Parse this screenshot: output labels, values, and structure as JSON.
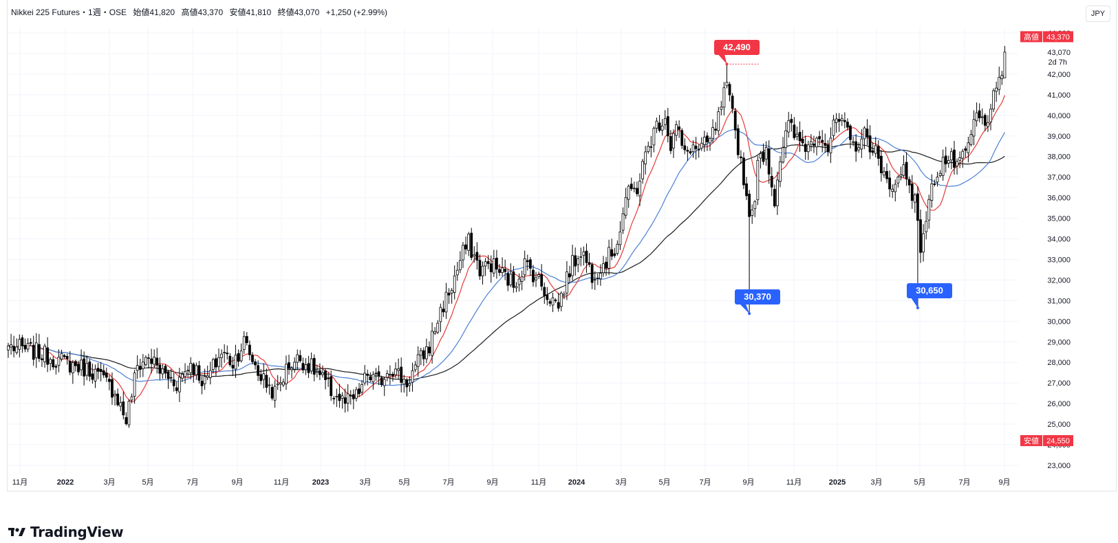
{
  "header": {
    "symbol": "Nikkei 225 Futures・1週・OSE",
    "open": "始値41,820",
    "high": "高値43,370",
    "low": "安値41,810",
    "close": "終値43,070",
    "change": "+1,250 (+2.99%)"
  },
  "currency": "JPY",
  "logo": "TradingView",
  "price_tags": {
    "high_label": "高値",
    "high_value": "43,370",
    "last_value": "43,070",
    "countdown": "2d 7h",
    "low_label": "安値",
    "low_value": "24,550"
  },
  "colors": {
    "up_body": "#ffffff",
    "down_body": "#000000",
    "wick": "#000000",
    "ma_short": "#e53935",
    "ma_mid": "#4a7fd4",
    "ma_long": "#1a1a1a",
    "callout_red": "#f23645",
    "callout_blue": "#2962ff"
  },
  "chart_data": {
    "type": "candlestick",
    "y_axis": {
      "min": 22600,
      "max": 44400,
      "ticks": [
        "23,000",
        "24,000",
        "25,000",
        "26,000",
        "27,000",
        "28,000",
        "29,000",
        "30,000",
        "31,000",
        "32,000",
        "33,000",
        "34,000",
        "35,000",
        "36,000",
        "37,000",
        "38,000",
        "39,000",
        "40,000",
        "41,000",
        "42,000",
        "43,070",
        "44,000"
      ],
      "position": "right"
    },
    "x_axis": {
      "labels": [
        "11月",
        "2022",
        "3月",
        "5月",
        "7月",
        "9月",
        "11月",
        "2023",
        "3月",
        "5月",
        "7月",
        "9月",
        "11月",
        "2024",
        "3月",
        "5月",
        "7月",
        "9月",
        "11月",
        "2025",
        "3月",
        "5月",
        "7月",
        "9月"
      ]
    },
    "grid": true,
    "annotations": [
      {
        "text": "42,490",
        "color": "red",
        "kind": "high",
        "value": 42490
      },
      {
        "text": "30,370",
        "color": "blue",
        "kind": "low",
        "value": 30370
      },
      {
        "text": "30,650",
        "color": "blue",
        "kind": "low",
        "value": 30650
      }
    ],
    "anchors": [
      [
        0,
        28800
      ],
      [
        10,
        28500
      ],
      [
        20,
        28000
      ],
      [
        30,
        27600
      ],
      [
        38,
        26600
      ],
      [
        42,
        25200
      ],
      [
        46,
        27800
      ],
      [
        50,
        28300
      ],
      [
        54,
        27600
      ],
      [
        60,
        27000
      ],
      [
        65,
        28000
      ],
      [
        70,
        27000
      ],
      [
        76,
        28500
      ],
      [
        80,
        28000
      ],
      [
        84,
        29000
      ],
      [
        90,
        27300
      ],
      [
        95,
        26500
      ],
      [
        100,
        27900
      ],
      [
        104,
        28200
      ],
      [
        110,
        27500
      ],
      [
        115,
        26600
      ],
      [
        120,
        26000
      ],
      [
        124,
        26300
      ],
      [
        128,
        27400
      ],
      [
        132,
        27000
      ],
      [
        136,
        27800
      ],
      [
        142,
        27000
      ],
      [
        146,
        28000
      ],
      [
        150,
        28800
      ],
      [
        154,
        30500
      ],
      [
        158,
        31700
      ],
      [
        162,
        33300
      ],
      [
        164,
        33800
      ],
      [
        168,
        32500
      ],
      [
        172,
        32800
      ],
      [
        176,
        32300
      ],
      [
        180,
        31800
      ],
      [
        184,
        32800
      ],
      [
        188,
        32200
      ],
      [
        192,
        31300
      ],
      [
        196,
        30800
      ],
      [
        200,
        32500
      ],
      [
        204,
        33500
      ],
      [
        208,
        32300
      ],
      [
        212,
        32800
      ],
      [
        216,
        33500
      ],
      [
        218,
        34500
      ],
      [
        220,
        36000
      ],
      [
        224,
        36500
      ],
      [
        228,
        38500
      ],
      [
        231,
        39500
      ],
      [
        234,
        40000
      ],
      [
        236,
        38500
      ],
      [
        238,
        39500
      ],
      [
        241,
        38000
      ],
      [
        243,
        38500
      ],
      [
        246,
        38300
      ],
      [
        250,
        38700
      ],
      [
        253,
        39800
      ],
      [
        255,
        41000
      ],
      [
        256,
        41200
      ],
      [
        258,
        40000
      ],
      [
        262,
        37000
      ],
      [
        263,
        36000
      ],
      [
        265,
        35000
      ],
      [
        267,
        37500
      ],
      [
        270,
        38500
      ],
      [
        272,
        36500
      ],
      [
        273,
        36000
      ],
      [
        275,
        38000
      ],
      [
        278,
        39500
      ],
      [
        281,
        38800
      ],
      [
        285,
        38500
      ],
      [
        289,
        39300
      ],
      [
        292,
        38400
      ],
      [
        295,
        39800
      ],
      [
        298,
        39300
      ],
      [
        301,
        38500
      ],
      [
        305,
        39000
      ],
      [
        309,
        38300
      ],
      [
        311,
        37000
      ],
      [
        313,
        37000
      ],
      [
        316,
        36500
      ],
      [
        319,
        37500
      ],
      [
        321,
        36800
      ],
      [
        323,
        35800
      ],
      [
        324,
        34500
      ],
      [
        325,
        33700
      ],
      [
        327,
        35000
      ],
      [
        330,
        37000
      ],
      [
        333,
        37800
      ],
      [
        336,
        37800
      ],
      [
        339,
        37500
      ],
      [
        342,
        38500
      ],
      [
        345,
        40000
      ],
      [
        348,
        39500
      ],
      [
        350,
        40500
      ],
      [
        352,
        41000
      ],
      [
        354,
        41800
      ],
      [
        355,
        43070
      ]
    ],
    "special_bars": [
      {
        "index": 256,
        "high": 42490
      },
      {
        "index": 264,
        "low": 30370
      },
      {
        "index": 324,
        "low": 30650
      }
    ],
    "moving_averages": [
      {
        "period": 9,
        "color": "#e53935"
      },
      {
        "period": 26,
        "color": "#4a7fd4"
      },
      {
        "period": 52,
        "color": "#1a1a1a"
      }
    ]
  }
}
